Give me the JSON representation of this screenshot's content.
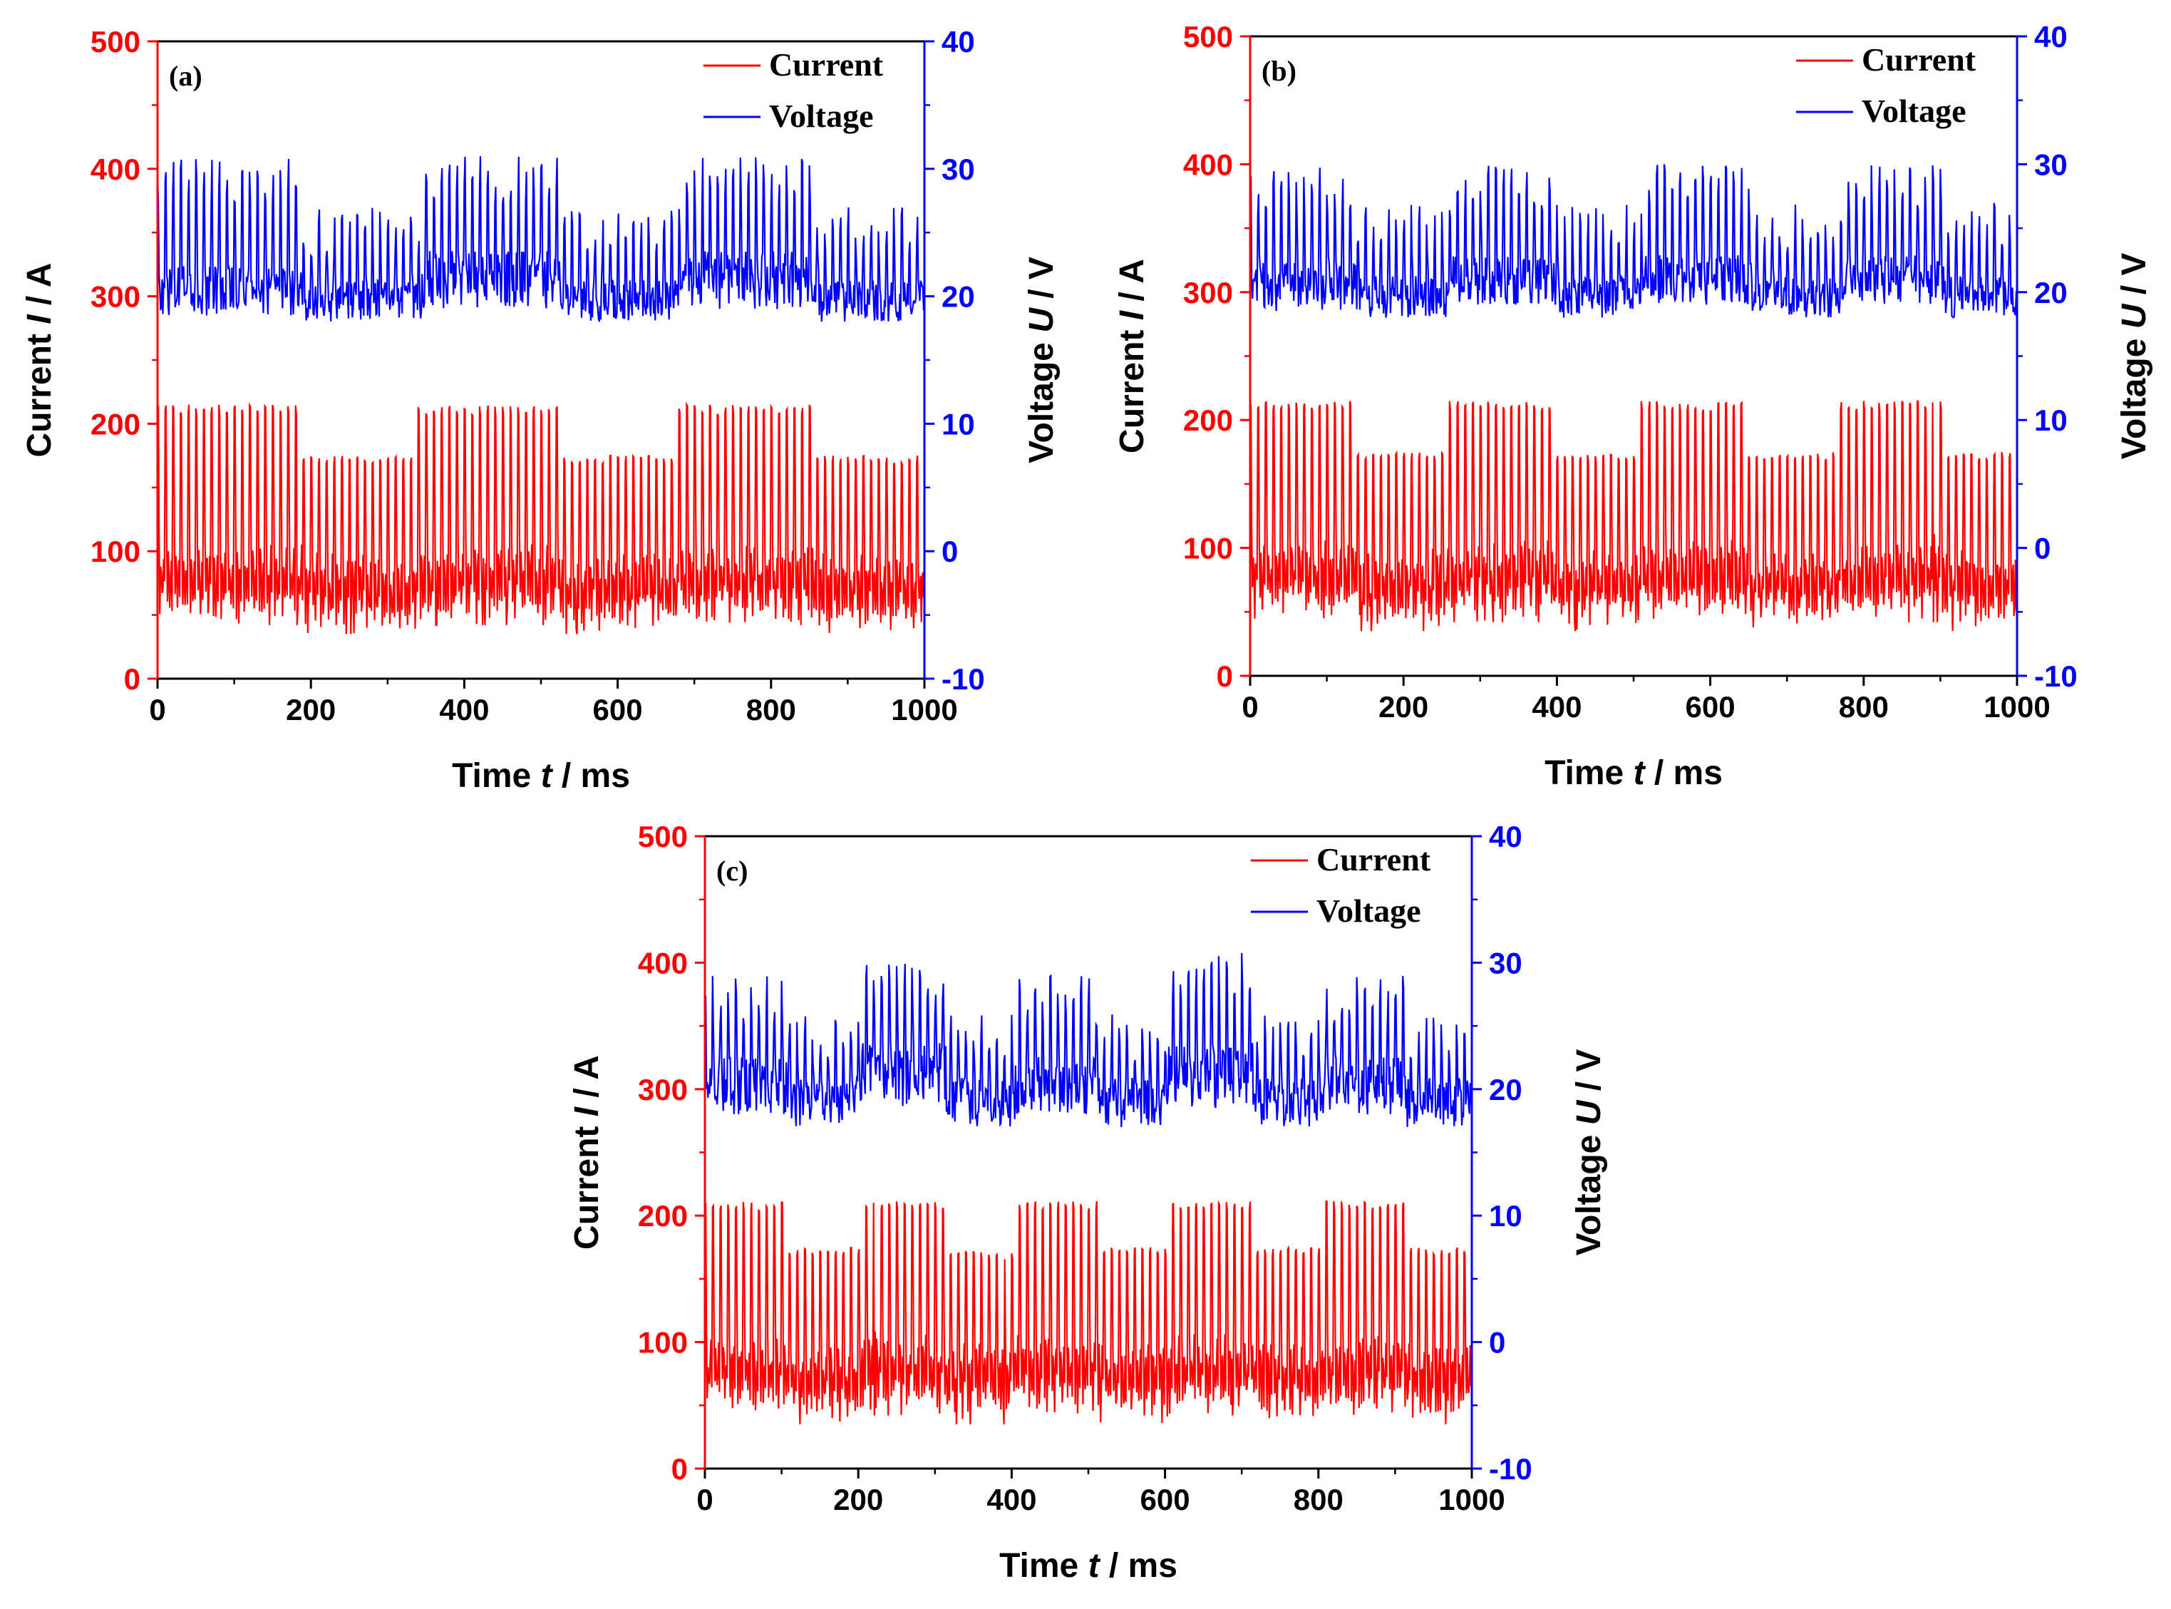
{
  "colors": {
    "current": "#ff0000",
    "voltage": "#0000ff",
    "frame": "#000000"
  },
  "chart_data": [
    {
      "type": "line",
      "panel_label": "(a)",
      "xlabel": {
        "pre": "Time ",
        "var": "t",
        "post": " / ms"
      },
      "ylabel_left": {
        "pre": "Current ",
        "var": "I",
        "post": " / A"
      },
      "ylabel_right": {
        "pre": "Voltage ",
        "var": "U",
        "post": " / V"
      },
      "xlim": [
        0,
        1000
      ],
      "ylim_left": [
        0,
        500
      ],
      "ylim_right": [
        -10,
        40
      ],
      "xticks": [
        "0",
        "200",
        "400",
        "600",
        "800",
        "1000"
      ],
      "yticks_left": [
        "0",
        "100",
        "200",
        "300",
        "400",
        "500"
      ],
      "yticks_right": [
        "-10",
        "0",
        "10",
        "20",
        "30",
        "40"
      ],
      "legend": [
        "Current",
        "Voltage"
      ],
      "series": [
        {
          "name": "Current",
          "axis": "left",
          "pulse_freq_hz": 100,
          "segments": [
            {
              "x": [
                0,
                190
              ],
              "high": 215,
              "low": 62
            },
            {
              "x": [
                190,
                340
              ],
              "high": 175,
              "low": 55
            },
            {
              "x": [
                340,
                525
              ],
              "high": 215,
              "low": 62
            },
            {
              "x": [
                525,
                675
              ],
              "high": 175,
              "low": 55
            },
            {
              "x": [
                675,
                855
              ],
              "high": 215,
              "low": 62
            },
            {
              "x": [
                855,
                1000
              ],
              "high": 175,
              "low": 55
            }
          ]
        },
        {
          "name": "Voltage",
          "axis": "right",
          "pulse_freq_hz": 100,
          "segments": [
            {
              "x": [
                0,
                190
              ],
              "peak": 31,
              "base": 20,
              "low": 17
            },
            {
              "x": [
                190,
                345
              ],
              "peak": 27,
              "base": 19,
              "low": 16.5
            },
            {
              "x": [
                345,
                525
              ],
              "peak": 31,
              "base": 21,
              "low": 17.5
            },
            {
              "x": [
                525,
                685
              ],
              "peak": 27,
              "base": 19,
              "low": 16.5
            },
            {
              "x": [
                685,
                860
              ],
              "peak": 31,
              "base": 21,
              "low": 17.5
            },
            {
              "x": [
                860,
                1000
              ],
              "peak": 27,
              "base": 19,
              "low": 16.5
            }
          ]
        }
      ]
    },
    {
      "type": "line",
      "panel_label": "(b)",
      "xlabel": {
        "pre": "Time ",
        "var": "t",
        "post": " / ms"
      },
      "ylabel_left": {
        "pre": "Current ",
        "var": "I",
        "post": " / A"
      },
      "ylabel_right": {
        "pre": "Voltage ",
        "var": "U",
        "post": " / V"
      },
      "xlim": [
        0,
        1000
      ],
      "ylim_left": [
        0,
        500
      ],
      "ylim_right": [
        -10,
        40
      ],
      "xticks": [
        "0",
        "200",
        "400",
        "600",
        "800",
        "1000"
      ],
      "yticks_left": [
        "0",
        "100",
        "200",
        "300",
        "400",
        "500"
      ],
      "yticks_right": [
        "-10",
        "0",
        "10",
        "20",
        "30",
        "40"
      ],
      "legend": [
        "Current",
        "Voltage"
      ],
      "series": [
        {
          "name": "Current",
          "axis": "left",
          "pulse_freq_hz": 100,
          "segments": [
            {
              "x": [
                0,
                140
              ],
              "high": 215,
              "low": 62
            },
            {
              "x": [
                140,
                255
              ],
              "high": 175,
              "low": 55
            },
            {
              "x": [
                255,
                395
              ],
              "high": 215,
              "low": 62
            },
            {
              "x": [
                395,
                510
              ],
              "high": 175,
              "low": 55
            },
            {
              "x": [
                510,
                650
              ],
              "high": 215,
              "low": 62
            },
            {
              "x": [
                650,
                765
              ],
              "high": 175,
              "low": 55
            },
            {
              "x": [
                765,
                905
              ],
              "high": 215,
              "low": 62
            },
            {
              "x": [
                905,
                1000
              ],
              "high": 175,
              "low": 55
            }
          ]
        },
        {
          "name": "Voltage",
          "axis": "right",
          "pulse_freq_hz": 100,
          "segments": [
            {
              "x": [
                0,
                140
              ],
              "peak": 30,
              "base": 20,
              "low": 17
            },
            {
              "x": [
                140,
                265
              ],
              "peak": 27,
              "base": 19,
              "low": 16.5
            },
            {
              "x": [
                265,
                400
              ],
              "peak": 30,
              "base": 20.5,
              "low": 17.5
            },
            {
              "x": [
                400,
                515
              ],
              "peak": 27,
              "base": 19,
              "low": 16.5
            },
            {
              "x": [
                515,
                655
              ],
              "peak": 30,
              "base": 20.5,
              "low": 17.5
            },
            {
              "x": [
                655,
                775
              ],
              "peak": 27,
              "base": 19,
              "low": 16.5
            },
            {
              "x": [
                775,
                905
              ],
              "peak": 30,
              "base": 20.5,
              "low": 17.5
            },
            {
              "x": [
                905,
                1000
              ],
              "peak": 27,
              "base": 19,
              "low": 16.5
            }
          ]
        }
      ]
    },
    {
      "type": "line",
      "panel_label": "(c)",
      "xlabel": {
        "pre": "Time ",
        "var": "t",
        "post": " / ms"
      },
      "ylabel_left": {
        "pre": "Current ",
        "var": "I",
        "post": " / A"
      },
      "ylabel_right": {
        "pre": "Voltage ",
        "var": "U",
        "post": " / V"
      },
      "xlim": [
        0,
        1000
      ],
      "ylim_left": [
        0,
        500
      ],
      "ylim_right": [
        -10,
        40
      ],
      "xticks": [
        "0",
        "200",
        "400",
        "600",
        "800",
        "1000"
      ],
      "yticks_left": [
        "0",
        "100",
        "200",
        "300",
        "400",
        "500"
      ],
      "yticks_right": [
        "-10",
        "0",
        "10",
        "20",
        "30",
        "40"
      ],
      "legend": [
        "Current",
        "Voltage"
      ],
      "series": [
        {
          "name": "Current",
          "axis": "left",
          "pulse_freq_hz": 100,
          "segments": [
            {
              "x": [
                0,
                110
              ],
              "high": 212,
              "low": 62
            },
            {
              "x": [
                110,
                205
              ],
              "high": 175,
              "low": 55
            },
            {
              "x": [
                205,
                315
              ],
              "high": 212,
              "low": 62
            },
            {
              "x": [
                315,
                405
              ],
              "high": 172,
              "low": 55
            },
            {
              "x": [
                405,
                515
              ],
              "high": 212,
              "low": 62
            },
            {
              "x": [
                515,
                605
              ],
              "high": 175,
              "low": 55
            },
            {
              "x": [
                605,
                715
              ],
              "high": 212,
              "low": 62
            },
            {
              "x": [
                715,
                805
              ],
              "high": 175,
              "low": 55
            },
            {
              "x": [
                805,
                915
              ],
              "high": 212,
              "low": 62
            },
            {
              "x": [
                915,
                1000
              ],
              "high": 175,
              "low": 55
            }
          ]
        },
        {
          "name": "Voltage",
          "axis": "right",
          "pulse_freq_hz": 100,
          "segments": [
            {
              "x": [
                0,
                110
              ],
              "peak": 29,
              "base": 20,
              "low": 16.5
            },
            {
              "x": [
                110,
                205
              ],
              "peak": 26,
              "base": 18.5,
              "low": 15.5
            },
            {
              "x": [
                205,
                315
              ],
              "peak": 30,
              "base": 21,
              "low": 17
            },
            {
              "x": [
                315,
                405
              ],
              "peak": 26,
              "base": 18.5,
              "low": 15.5
            },
            {
              "x": [
                405,
                515
              ],
              "peak": 29,
              "base": 20,
              "low": 16.5
            },
            {
              "x": [
                515,
                605
              ],
              "peak": 26,
              "base": 18.5,
              "low": 15.5
            },
            {
              "x": [
                605,
                715
              ],
              "peak": 31,
              "base": 21,
              "low": 17
            },
            {
              "x": [
                715,
                805
              ],
              "peak": 26,
              "base": 18.5,
              "low": 15.5
            },
            {
              "x": [
                805,
                915
              ],
              "peak": 29,
              "base": 20,
              "low": 16.5
            },
            {
              "x": [
                915,
                1000
              ],
              "peak": 26,
              "base": 18.5,
              "low": 15.5
            }
          ]
        }
      ]
    }
  ]
}
